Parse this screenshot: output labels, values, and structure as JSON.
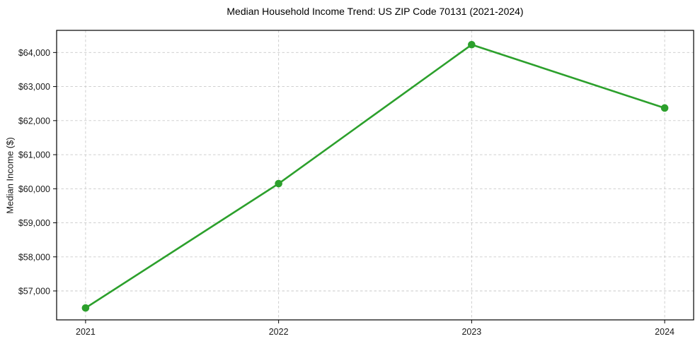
{
  "figure": {
    "background": "#ffffff"
  },
  "chart_data": {
    "type": "line",
    "title": "Median Household Income Trend: US ZIP Code 70131 (2021-2024)",
    "xlabel": "",
    "ylabel": "Median Income ($)",
    "x": [
      2021,
      2022,
      2023,
      2024
    ],
    "x_tick_labels": [
      "2021",
      "2022",
      "2023",
      "2024"
    ],
    "values": [
      56500,
      60150,
      64230,
      62370
    ],
    "y_ticks": [
      57000,
      58000,
      59000,
      60000,
      61000,
      62000,
      63000,
      64000
    ],
    "y_tick_labels": [
      "$57,000",
      "$58,000",
      "$59,000",
      "$60,000",
      "$61,000",
      "$62,000",
      "$63,000",
      "$64,000"
    ],
    "xlim": [
      2020.85,
      2024.15
    ],
    "ylim": [
      56150,
      64650
    ],
    "grid": "dashed",
    "legend": "none",
    "line_color": "#2ca02c",
    "marker": "circle",
    "colors": {
      "grid": "#c9c9c9",
      "frame": "#000000",
      "tick": "#000000",
      "tick_label": "#1a1a1a",
      "title": "#000000"
    }
  }
}
